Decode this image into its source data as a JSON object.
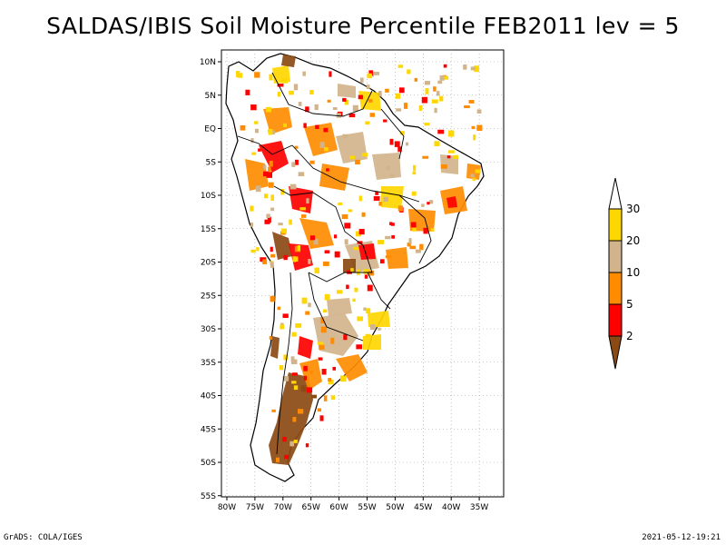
{
  "title": "SALDAS/IBIS Soil Moisture Percentile FEB2011 lev = 5",
  "footer_left": "GrADS: COLA/IGES",
  "footer_right": "2021-05-12-19:21",
  "lat_labels": [
    "10N",
    "5N",
    "EQ",
    "5S",
    "10S",
    "15S",
    "20S",
    "25S",
    "30S",
    "35S",
    "40S",
    "45S",
    "50S",
    "55S"
  ],
  "lon_labels": [
    "80W",
    "75W",
    "70W",
    "65W",
    "60W",
    "55W",
    "50W",
    "45W",
    "40W",
    "35W"
  ],
  "colorbar": {
    "labels": [
      "2",
      "5",
      "10",
      "20",
      "30"
    ],
    "colors": [
      "#8b4a14",
      "#ff0000",
      "#ff8c00",
      "#d2b48c",
      "#ffd700",
      "#ffffff"
    ]
  },
  "colors": {
    "brown": "#8b4a14",
    "red": "#ff0000",
    "orange": "#ff8c00",
    "tan": "#d2b48c",
    "yellow": "#ffd700"
  }
}
